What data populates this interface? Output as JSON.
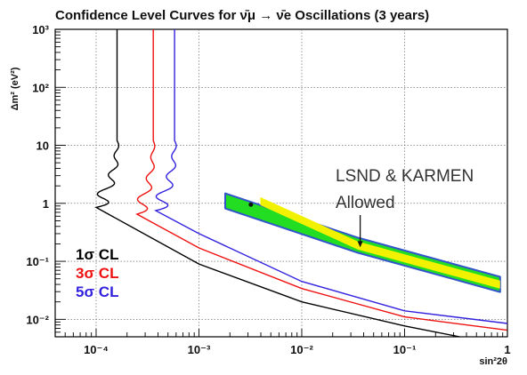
{
  "chart_data": {
    "type": "line",
    "title": "Confidence Level Curves for ν̄μ → ν̄e Oscillations (3 years)",
    "xlabel": "sin²2θ",
    "ylabel": "Δm² (eV²)",
    "xscale": "log",
    "yscale": "log",
    "xlim": [
      4e-05,
      1
    ],
    "ylim": [
      0.005,
      1000
    ],
    "x_ticks": [
      {
        "value": 0.0001,
        "label": "10⁻⁴"
      },
      {
        "value": 0.001,
        "label": "10⁻³"
      },
      {
        "value": 0.01,
        "label": "10⁻²"
      },
      {
        "value": 0.1,
        "label": "10⁻¹"
      },
      {
        "value": 1,
        "label": "1"
      }
    ],
    "y_ticks": [
      {
        "value": 0.01,
        "label": "10⁻²"
      },
      {
        "value": 0.1,
        "label": "10⁻¹"
      },
      {
        "value": 1,
        "label": "1"
      },
      {
        "value": 10,
        "label": "10"
      },
      {
        "value": 100,
        "label": "10²"
      },
      {
        "value": 1000,
        "label": "10³"
      }
    ],
    "grid": true,
    "legend_position": "bottom-left",
    "series": [
      {
        "name": "1σ CL",
        "color": "#000000",
        "x_asymptote": 0.00016,
        "x_min": 0.0001,
        "dm2_at_min": 0.85,
        "slope_above": 0.012,
        "slope_below": 0.004,
        "wiggle_amplitude": 0.13,
        "wiggle_decay": 1.1,
        "points": [
          [
            0.00016,
            1000
          ],
          [
            0.00016,
            15
          ],
          [
            0.00013,
            5
          ],
          [
            0.0001,
            0.85
          ],
          [
            0.001,
            0.09
          ],
          [
            0.01,
            0.02
          ],
          [
            0.1,
            0.0077
          ],
          [
            0.75,
            0.0038
          ]
        ]
      },
      {
        "name": "3σ CL",
        "color": "#ee1111",
        "x_asymptote": 0.00036,
        "x_min": 0.00025,
        "dm2_at_min": 0.65,
        "slope_above": 0.012,
        "slope_below": 0.004,
        "wiggle_amplitude": 0.11,
        "wiggle_decay": 1.1,
        "points": [
          [
            0.00036,
            1000
          ],
          [
            0.00036,
            12
          ],
          [
            0.0003,
            3
          ],
          [
            0.00025,
            0.65
          ],
          [
            0.001,
            0.17
          ],
          [
            0.01,
            0.034
          ],
          [
            0.1,
            0.011
          ],
          [
            1,
            0.0065
          ]
        ]
      },
      {
        "name": "5σ CL",
        "color": "#3322dd",
        "x_asymptote": 0.00058,
        "x_min": 0.00038,
        "dm2_at_min": 0.75,
        "slope_above": 0.012,
        "slope_below": 0.004,
        "wiggle_amplitude": 0.13,
        "wiggle_decay": 1.1,
        "points": [
          [
            0.00058,
            1000
          ],
          [
            0.00058,
            10
          ],
          [
            0.00048,
            3
          ],
          [
            0.00038,
            0.75
          ],
          [
            0.001,
            0.3
          ],
          [
            0.01,
            0.045
          ],
          [
            0.1,
            0.014
          ],
          [
            1,
            0.0085
          ]
        ]
      }
    ],
    "allowed_region": {
      "label_line1": "LSND & KARMEN",
      "label_line2": "Allowed",
      "outer_color": "#22dd22",
      "inner_color": "#f2f200",
      "edge_color": "#3355cc",
      "center_line": [
        [
          0.0018,
          1.1
        ],
        [
          0.035,
          0.19
        ],
        [
          0.85,
          0.04
        ]
      ],
      "half_width_factor": 1.35,
      "arrow_target": [
        0.037,
        0.18
      ]
    },
    "annotation_marker": [
      0.0032,
      0.95
    ]
  }
}
